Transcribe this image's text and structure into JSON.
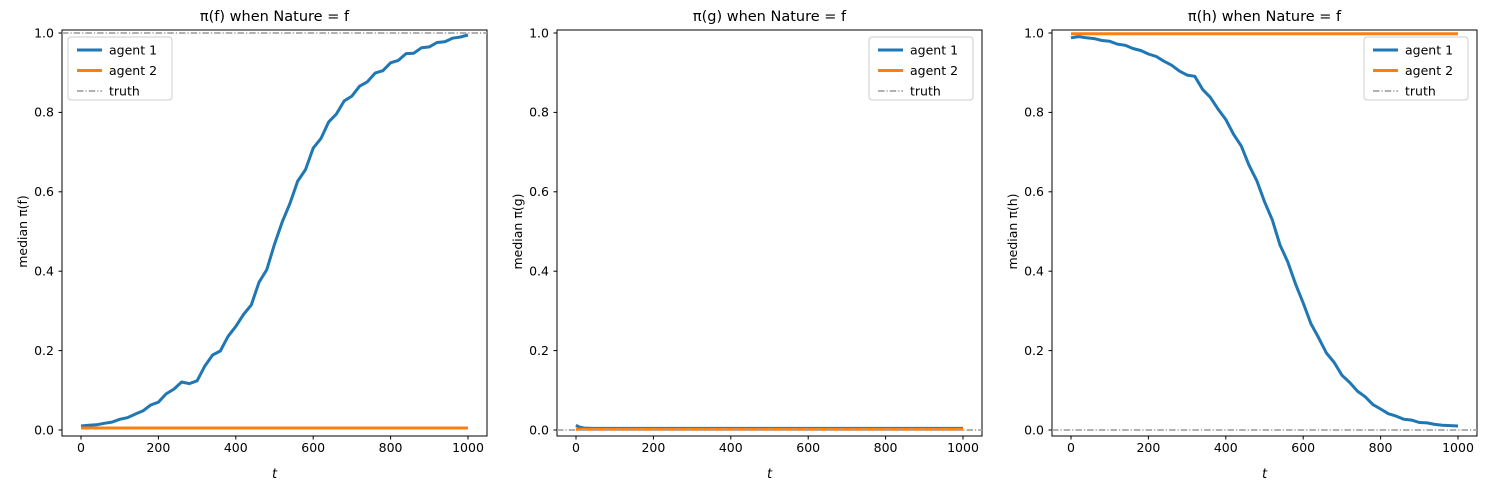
{
  "figure": {
    "background": "#ffffff"
  },
  "colors": {
    "agent1": "#1f77b4",
    "agent2": "#ff7f0e",
    "truth": "#a6a6a6",
    "spine": "#000000",
    "legend_border": "#cccccc"
  },
  "chart_data": [
    {
      "type": "line",
      "title": "π(f) when Nature = f",
      "xlabel": "t",
      "ylabel": "median π(f)",
      "xlim": [
        0,
        1000
      ],
      "ylim": [
        0,
        1
      ],
      "xticks": [
        0,
        200,
        400,
        600,
        800,
        1000
      ],
      "yticks": [
        0.0,
        0.2,
        0.4,
        0.6,
        0.8,
        1.0
      ],
      "grid": false,
      "legend": {
        "position": "upper-left",
        "entries": [
          "agent 1",
          "agent 2",
          "truth"
        ]
      },
      "series": [
        {
          "name": "agent 1",
          "color_key": "agent1",
          "style": "solid",
          "width": 3,
          "span": "data",
          "x": [
            0,
            20,
            40,
            60,
            80,
            100,
            120,
            140,
            160,
            180,
            200,
            220,
            240,
            260,
            280,
            300,
            320,
            340,
            360,
            380,
            400,
            420,
            440,
            460,
            480,
            500,
            520,
            540,
            560,
            580,
            600,
            620,
            640,
            660,
            680,
            700,
            720,
            740,
            760,
            780,
            800,
            820,
            840,
            860,
            880,
            900,
            920,
            940,
            960,
            980,
            1000
          ],
          "y": [
            0.01,
            0.012,
            0.013,
            0.017,
            0.02,
            0.027,
            0.031,
            0.04,
            0.048,
            0.063,
            0.07,
            0.091,
            0.103,
            0.121,
            0.117,
            0.124,
            0.161,
            0.189,
            0.199,
            0.236,
            0.261,
            0.291,
            0.315,
            0.372,
            0.404,
            0.468,
            0.524,
            0.571,
            0.627,
            0.656,
            0.71,
            0.734,
            0.776,
            0.796,
            0.829,
            0.841,
            0.866,
            0.877,
            0.899,
            0.905,
            0.925,
            0.931,
            0.948,
            0.949,
            0.963,
            0.965,
            0.976,
            0.978,
            0.987,
            0.99,
            0.995
          ]
        },
        {
          "name": "agent 2",
          "color_key": "agent2",
          "style": "solid",
          "width": 3,
          "span": "data",
          "x": [
            0,
            1000
          ],
          "y": [
            0.005,
            0.005
          ]
        },
        {
          "name": "truth",
          "color_key": "truth",
          "style": "dashdot",
          "width": 1.8,
          "span": "full",
          "x": [
            0,
            1000
          ],
          "y": [
            1.0,
            1.0
          ]
        }
      ]
    },
    {
      "type": "line",
      "title": "π(g) when Nature = f",
      "xlabel": "t",
      "ylabel": "median π(g)",
      "xlim": [
        0,
        1000
      ],
      "ylim": [
        0,
        1
      ],
      "xticks": [
        0,
        200,
        400,
        600,
        800,
        1000
      ],
      "yticks": [
        0.0,
        0.2,
        0.4,
        0.6,
        0.8,
        1.0
      ],
      "grid": false,
      "legend": {
        "position": "upper-right",
        "entries": [
          "agent 1",
          "agent 2",
          "truth"
        ]
      },
      "series": [
        {
          "name": "agent 1",
          "color_key": "agent1",
          "style": "solid",
          "width": 3,
          "span": "data",
          "x": [
            0,
            5,
            10,
            20,
            40,
            80,
            150,
            300,
            600,
            1000
          ],
          "y": [
            0.012,
            0.009,
            0.007,
            0.005,
            0.004,
            0.004,
            0.004,
            0.004,
            0.004,
            0.004
          ]
        },
        {
          "name": "agent 2",
          "color_key": "agent2",
          "style": "solid",
          "width": 3,
          "span": "data",
          "x": [
            0,
            1000
          ],
          "y": [
            0.002,
            0.002
          ]
        },
        {
          "name": "truth",
          "color_key": "truth",
          "style": "dashdot",
          "width": 1.8,
          "span": "full",
          "x": [
            0,
            1000
          ],
          "y": [
            0.0,
            0.0
          ]
        }
      ]
    },
    {
      "type": "line",
      "title": "π(h) when Nature = f",
      "xlabel": "t",
      "ylabel": "median π(h)",
      "xlim": [
        0,
        1000
      ],
      "ylim": [
        0,
        1
      ],
      "xticks": [
        0,
        200,
        400,
        600,
        800,
        1000
      ],
      "yticks": [
        0.0,
        0.2,
        0.4,
        0.6,
        0.8,
        1.0
      ],
      "grid": false,
      "legend": {
        "position": "upper-right",
        "entries": [
          "agent 1",
          "agent 2",
          "truth"
        ]
      },
      "series": [
        {
          "name": "agent 1",
          "color_key": "agent1",
          "style": "solid",
          "width": 3,
          "span": "data",
          "x": [
            0,
            20,
            40,
            60,
            80,
            100,
            120,
            140,
            160,
            180,
            200,
            220,
            240,
            260,
            280,
            300,
            320,
            340,
            360,
            380,
            400,
            420,
            440,
            460,
            480,
            500,
            520,
            540,
            560,
            580,
            600,
            620,
            640,
            660,
            680,
            700,
            720,
            740,
            760,
            780,
            800,
            820,
            840,
            860,
            880,
            900,
            920,
            940,
            960,
            980,
            1000
          ],
          "y": [
            0.988,
            0.991,
            0.988,
            0.986,
            0.981,
            0.979,
            0.972,
            0.969,
            0.961,
            0.956,
            0.947,
            0.941,
            0.929,
            0.919,
            0.904,
            0.894,
            0.891,
            0.858,
            0.838,
            0.808,
            0.782,
            0.745,
            0.715,
            0.667,
            0.628,
            0.575,
            0.53,
            0.466,
            0.424,
            0.368,
            0.32,
            0.268,
            0.232,
            0.194,
            0.17,
            0.138,
            0.12,
            0.098,
            0.084,
            0.064,
            0.053,
            0.041,
            0.035,
            0.027,
            0.025,
            0.019,
            0.018,
            0.014,
            0.012,
            0.011,
            0.01
          ]
        },
        {
          "name": "agent 2",
          "color_key": "agent2",
          "style": "solid",
          "width": 3,
          "span": "data",
          "x": [
            0,
            1000
          ],
          "y": [
            0.998,
            0.998
          ]
        },
        {
          "name": "truth",
          "color_key": "truth",
          "style": "dashdot",
          "width": 1.8,
          "span": "full",
          "x": [
            0,
            1000
          ],
          "y": [
            0.0,
            0.0
          ]
        }
      ]
    }
  ]
}
